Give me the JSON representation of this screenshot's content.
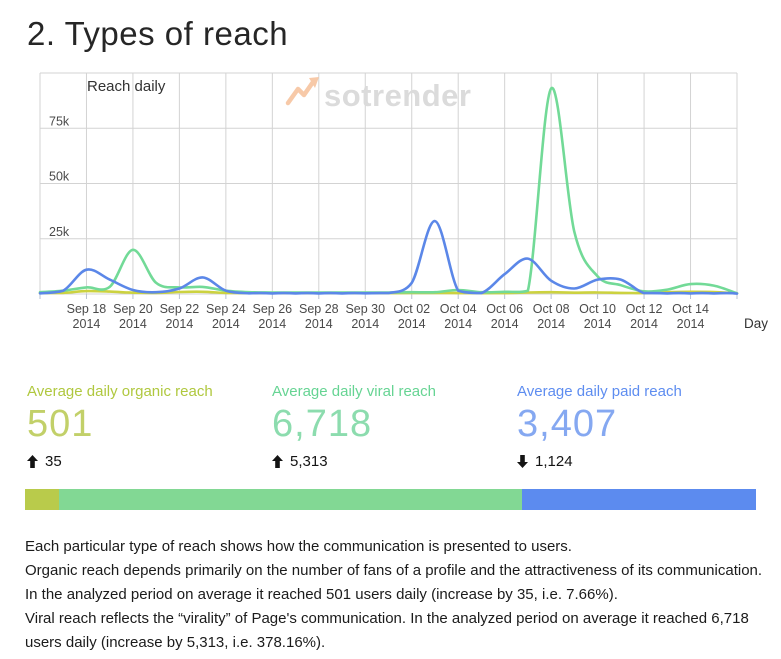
{
  "title": "2. Types of reach",
  "chart": {
    "inner_title": "Reach daily",
    "watermark": "sotrender",
    "day_axis_label": "Day"
  },
  "chart_data": {
    "type": "line",
    "title": "Reach daily",
    "xlabel": "Day",
    "ylabel": "",
    "y_max": 100000,
    "y_tick_values": [
      25000,
      50000,
      75000
    ],
    "y_tick_labels": [
      "25k",
      "50k",
      "75k"
    ],
    "grid": true,
    "legend_position": "none",
    "x_tick_every": 2,
    "x_tick_year": "2014",
    "x": [
      "Sep 16",
      "Sep 17",
      "Sep 18",
      "Sep 19",
      "Sep 20",
      "Sep 21",
      "Sep 22",
      "Sep 23",
      "Sep 24",
      "Sep 25",
      "Sep 26",
      "Sep 27",
      "Sep 28",
      "Sep 29",
      "Sep 30",
      "Oct 01",
      "Oct 02",
      "Oct 03",
      "Oct 04",
      "Oct 05",
      "Oct 06",
      "Oct 07",
      "Oct 08",
      "Oct 09",
      "Oct 10",
      "Oct 11",
      "Oct 12",
      "Oct 13",
      "Oct 14",
      "Oct 15",
      "Oct 16"
    ],
    "series": [
      {
        "name": "organic reach",
        "color": "#ccd23f",
        "values": [
          400,
          500,
          1300,
          1100,
          600,
          500,
          900,
          1000,
          500,
          350,
          350,
          350,
          350,
          350,
          400,
          400,
          450,
          500,
          400,
          350,
          400,
          700,
          800,
          600,
          700,
          500,
          400,
          800,
          1000,
          900,
          300
        ]
      },
      {
        "name": "viral reach",
        "color": "#72da97",
        "values": [
          800,
          1500,
          3000,
          3200,
          20000,
          5000,
          3000,
          3200,
          1500,
          800,
          700,
          700,
          700,
          700,
          700,
          700,
          800,
          800,
          1800,
          800,
          1000,
          1500,
          93000,
          28000,
          8000,
          4000,
          1200,
          2000,
          4500,
          3800,
          300
        ]
      },
      {
        "name": "paid reach",
        "color": "#5b87e8",
        "values": [
          300,
          1500,
          11000,
          6500,
          1800,
          800,
          2500,
          7500,
          1500,
          300,
          250,
          250,
          250,
          250,
          300,
          400,
          5000,
          33000,
          1500,
          400,
          9000,
          16000,
          6000,
          2500,
          6500,
          6500,
          400,
          250,
          250,
          250,
          200
        ]
      }
    ]
  },
  "stats": {
    "items": [
      {
        "label": "Average daily organic reach",
        "value": "501",
        "change": "35",
        "direction": "up",
        "label_color": "#b0c83f",
        "value_color": "#c2d069"
      },
      {
        "label": "Average daily viral reach",
        "value": "6,718",
        "change": "5,313",
        "direction": "up",
        "label_color": "#66d493",
        "value_color": "#8cdcae"
      },
      {
        "label": "Average daily paid reach",
        "value": "3,407",
        "change": "1,124",
        "direction": "down",
        "label_color": "#5e8df0",
        "value_color": "#85a8f1"
      }
    ]
  },
  "bar": {
    "segments": [
      {
        "name": "organic",
        "value": 501,
        "color": "#b9cb4b"
      },
      {
        "name": "viral",
        "value": 6718,
        "color": "#82d894"
      },
      {
        "name": "paid",
        "value": 3407,
        "color": "#5c8bef"
      }
    ]
  },
  "description": {
    "paragraphs": [
      "Each particular type of reach shows how the communication is presented to users.",
      "Organic reach depends primarily on the number of fans of a profile and the attractiveness of its communication. In the analyzed period on average it reached 501 users daily (increase by 35, i.e. 7.66%).",
      "Viral reach reflects the “virality” of Page's communication. In the analyzed period on average it reached 6,718 users daily (increase by 5,313, i.e. 378.16%)."
    ]
  }
}
